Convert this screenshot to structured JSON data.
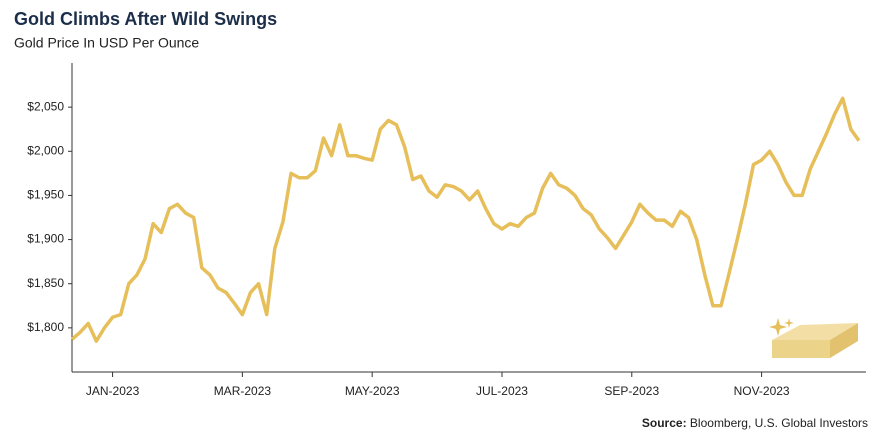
{
  "chart_data": {
    "type": "line",
    "title": "Gold Climbs After Wild Swings",
    "subtitle": "Gold Price In USD Per Ounce",
    "source_label": "Source:",
    "source": "Bloomberg, U.S. Global Investors",
    "categories": [
      null,
      null,
      null,
      null,
      null,
      "JAN-2023",
      null,
      null,
      null,
      null,
      null,
      null,
      null,
      null,
      null,
      null,
      null,
      null,
      null,
      null,
      null,
      "MAR-2023",
      null,
      null,
      null,
      null,
      null,
      null,
      null,
      null,
      null,
      null,
      null,
      null,
      null,
      null,
      null,
      "MAY-2023",
      null,
      null,
      null,
      null,
      null,
      null,
      null,
      null,
      null,
      null,
      null,
      null,
      null,
      null,
      null,
      "JUL-2023",
      null,
      null,
      null,
      null,
      null,
      null,
      null,
      null,
      null,
      null,
      null,
      null,
      null,
      null,
      null,
      "SEP-2023",
      null,
      null,
      null,
      null,
      null,
      null,
      null,
      null,
      null,
      null,
      null,
      null,
      null,
      null,
      null,
      "NOV-2023",
      null,
      null,
      null,
      null,
      null,
      null,
      null,
      null,
      null,
      null,
      null,
      null
    ],
    "series": [
      {
        "name": "Gold",
        "color": "#e6bf5a",
        "values": [
          1787,
          1795,
          1805,
          1785,
          1800,
          1812,
          1815,
          1850,
          1860,
          1878,
          1918,
          1908,
          1935,
          1940,
          1930,
          1925,
          1868,
          1860,
          1845,
          1840,
          1828,
          1815,
          1840,
          1850,
          1815,
          1890,
          1920,
          1975,
          1970,
          1970,
          1978,
          2015,
          1995,
          2030,
          1995,
          1995,
          1992,
          1990,
          2025,
          2035,
          2030,
          2005,
          1968,
          1972,
          1955,
          1948,
          1962,
          1960,
          1955,
          1945,
          1955,
          1935,
          1918,
          1912,
          1918,
          1915,
          1925,
          1930,
          1958,
          1975,
          1962,
          1958,
          1950,
          1935,
          1928,
          1912,
          1902,
          1890,
          1905,
          1920,
          1940,
          1930,
          1922,
          1922,
          1915,
          1932,
          1925,
          1900,
          1860,
          1825,
          1825,
          1862,
          1900,
          1940,
          1985,
          1990,
          2000,
          1985,
          1965,
          1950,
          1950,
          1980,
          2000,
          2020,
          2042,
          2060,
          2025,
          2012
        ]
      }
    ],
    "ylim": [
      1750,
      2100
    ],
    "yticks": [
      {
        "value": 1800,
        "label": "$1,800"
      },
      {
        "value": 1850,
        "label": "$1,850"
      },
      {
        "value": 1900,
        "label": "$1,900"
      },
      {
        "value": 1950,
        "label": "$1,950"
      },
      {
        "value": 2000,
        "label": "$2,000"
      },
      {
        "value": 2050,
        "label": "$2,050"
      }
    ],
    "grid": false
  }
}
